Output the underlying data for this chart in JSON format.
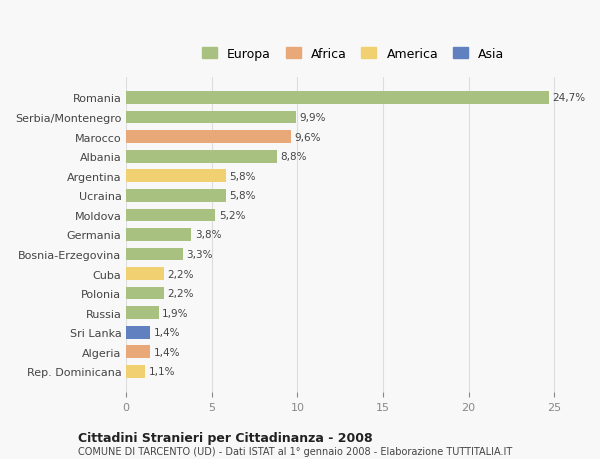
{
  "categories": [
    "Romania",
    "Serbia/Montenegro",
    "Marocco",
    "Albania",
    "Argentina",
    "Ucraina",
    "Moldova",
    "Germania",
    "Bosnia-Erzegovina",
    "Cuba",
    "Polonia",
    "Russia",
    "Sri Lanka",
    "Algeria",
    "Rep. Dominicana"
  ],
  "values": [
    24.7,
    9.9,
    9.6,
    8.8,
    5.8,
    5.8,
    5.2,
    3.8,
    3.3,
    2.2,
    2.2,
    1.9,
    1.4,
    1.4,
    1.1
  ],
  "labels": [
    "24,7%",
    "9,9%",
    "9,6%",
    "8,8%",
    "5,8%",
    "5,8%",
    "5,2%",
    "3,8%",
    "3,3%",
    "2,2%",
    "2,2%",
    "1,9%",
    "1,4%",
    "1,4%",
    "1,1%"
  ],
  "bar_colors": [
    "#a8c080",
    "#a8c080",
    "#e8a878",
    "#a8c080",
    "#f0d070",
    "#a8c080",
    "#a8c080",
    "#a8c080",
    "#a8c080",
    "#f0d070",
    "#a8c080",
    "#a8c080",
    "#6080c0",
    "#e8a878",
    "#f0d070"
  ],
  "continent_colors": {
    "Europa": "#a8c080",
    "Africa": "#e8a878",
    "America": "#f0d070",
    "Asia": "#6080c0"
  },
  "legend_labels": [
    "Europa",
    "Africa",
    "America",
    "Asia"
  ],
  "title1": "Cittadini Stranieri per Cittadinanza - 2008",
  "title2": "COMUNE DI TARCENTO (UD) - Dati ISTAT al 1° gennaio 2008 - Elaborazione TUTTITALIA.IT",
  "xlim": [
    0,
    26.5
  ],
  "xticks": [
    0,
    5,
    10,
    15,
    20,
    25
  ],
  "background_color": "#f8f8f8",
  "grid_color": "#dddddd"
}
